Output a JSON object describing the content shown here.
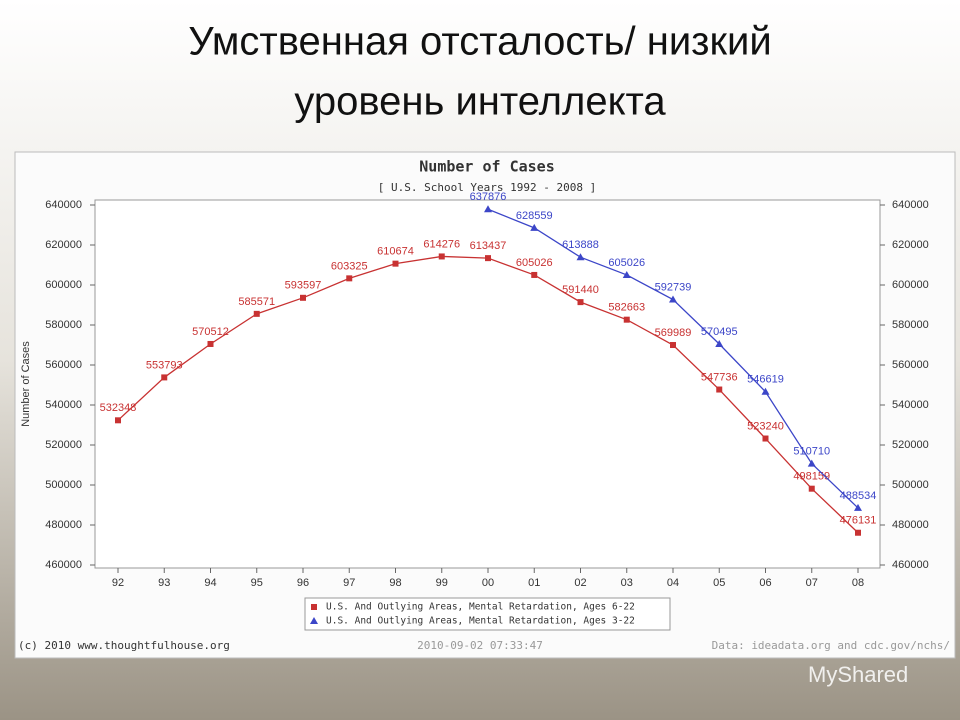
{
  "slide": {
    "title_lines": [
      "Умственная отсталость/ низкий",
      "уровень интеллекта"
    ],
    "watermark": "MyShared"
  },
  "chart_data": {
    "type": "line",
    "title": "Number of Cases",
    "subtitle": "[ U.S. School Years 1992 - 2008 ]",
    "y_label": "Number of Cases",
    "categories": [
      "92",
      "93",
      "94",
      "95",
      "96",
      "97",
      "98",
      "99",
      "00",
      "01",
      "02",
      "03",
      "04",
      "05",
      "06",
      "07",
      "08"
    ],
    "series": [
      {
        "name": "U.S. And Outlying Areas, Mental Retardation, Ages 6-22",
        "color": "#c83232",
        "marker": "square",
        "values": [
          532348,
          553793,
          570512,
          585571,
          593597,
          603325,
          610674,
          614276,
          613437,
          605026,
          591440,
          582663,
          569989,
          547736,
          523240,
          498159,
          476131
        ]
      },
      {
        "name": "U.S. And Outlying Areas, Mental Retardation, Ages 3-22",
        "color": "#3c46c8",
        "marker": "triangle",
        "values": [
          null,
          null,
          null,
          null,
          null,
          null,
          null,
          null,
          637876,
          628559,
          613888,
          605026,
          592739,
          570495,
          546619,
          510710,
          488534
        ]
      }
    ],
    "ylim": [
      460000,
      640000
    ],
    "yticks": [
      460000,
      480000,
      500000,
      520000,
      540000,
      560000,
      580000,
      600000,
      620000,
      640000
    ],
    "y2lim": [
      460000,
      640000
    ],
    "y2ticks": [
      460000,
      480000,
      500000,
      520000,
      540000,
      560000,
      580000,
      600000,
      620000,
      640000
    ],
    "grid": false,
    "credit": "(c) 2010 www.thoughtfulhouse.org",
    "timestamp": "2010-09-02 07:33:47",
    "source": "Data: ideadata.org and cdc.gov/nchs/"
  }
}
